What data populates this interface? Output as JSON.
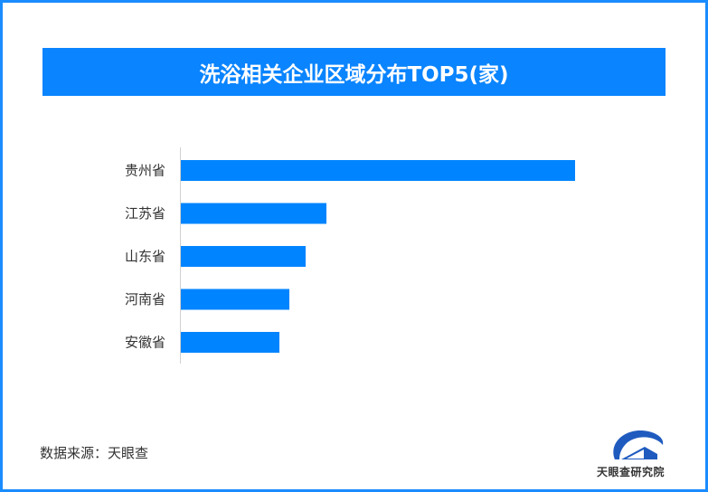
{
  "chart_data": {
    "type": "bar",
    "orientation": "horizontal",
    "title": "洗浴相关企业区域分布TOP5(家)",
    "categories": [
      "贵州省",
      "江苏省",
      "山东省",
      "河南省",
      "安徽省"
    ],
    "values": [
      436,
      161,
      138,
      120,
      109
    ],
    "xlabel": "",
    "ylabel": "",
    "grid": false,
    "bar_color": "#0084ff"
  },
  "source": "数据来源：天眼查",
  "logo_text": "天眼查研究院",
  "colors": {
    "frame": "#1a8cff",
    "title_bg": "#0a84ff"
  }
}
